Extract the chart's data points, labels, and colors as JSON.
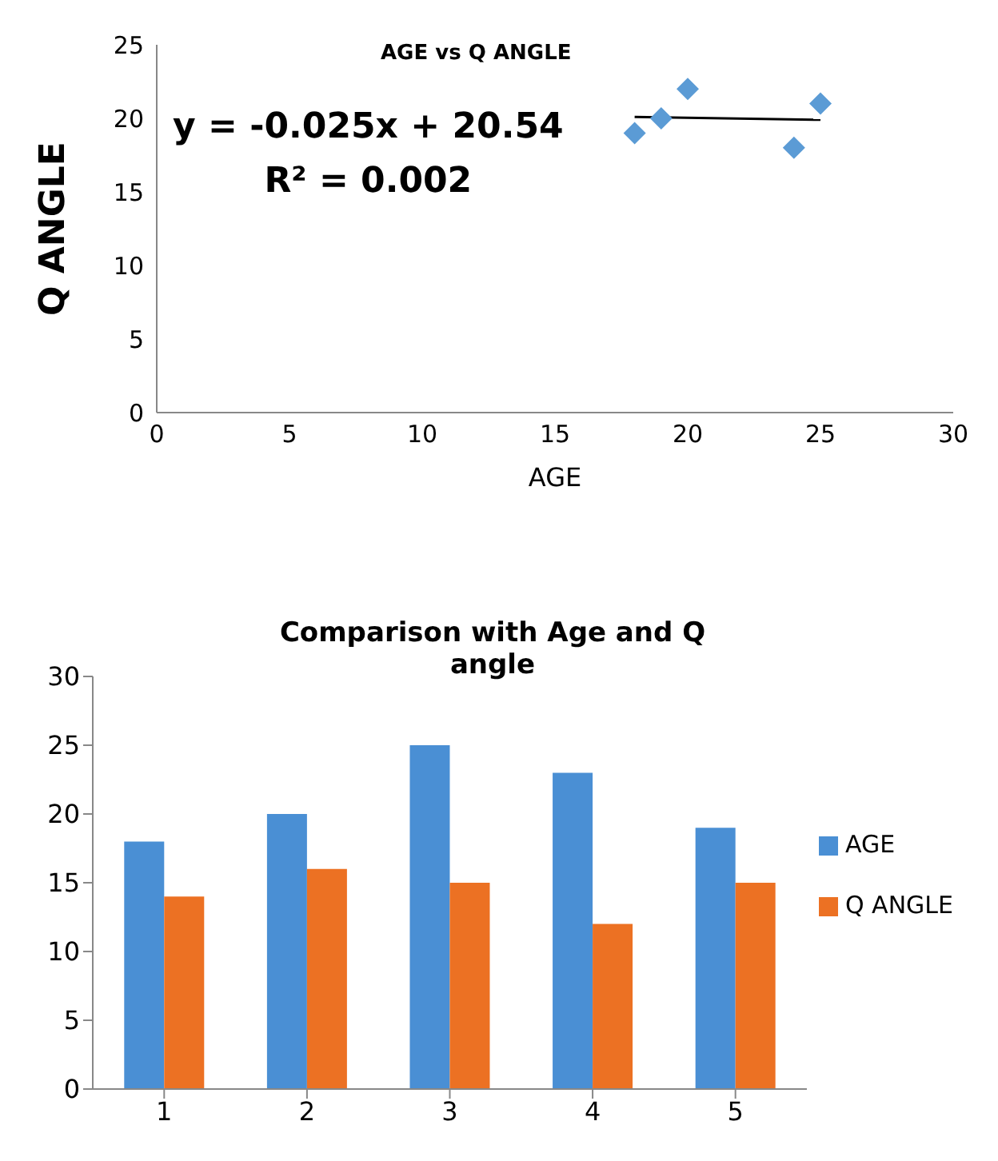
{
  "chart_data": [
    {
      "type": "scatter",
      "title": "AGE vs Q ANGLE",
      "xlabel": "AGE",
      "ylabel": "Q ANGLE",
      "xlim": [
        0,
        30
      ],
      "xticks": [
        0,
        5,
        10,
        15,
        20,
        25,
        30
      ],
      "ylim": [
        0,
        25
      ],
      "yticks": [
        0,
        5,
        10,
        15,
        20,
        25
      ],
      "marker": "diamond",
      "annotations": [
        "y = -0.025x + 20.54",
        "R² = 0.002"
      ],
      "series": [
        {
          "type": "scatter",
          "color": "#5b9bd5",
          "x": [
            18,
            19,
            20,
            24,
            25
          ],
          "values": [
            19,
            20,
            22,
            18,
            21
          ]
        },
        {
          "type": "line",
          "color": "#000000",
          "marker": "none",
          "x": [
            18,
            25
          ],
          "values": [
            20.1,
            19.9
          ]
        }
      ]
    },
    {
      "type": "bar",
      "title": "Comparison with Age and Q angle",
      "categories": [
        "1",
        "2",
        "3",
        "4",
        "5"
      ],
      "ylim": [
        0,
        30
      ],
      "yticks": [
        0,
        5,
        10,
        15,
        20,
        25,
        30
      ],
      "legend": "right",
      "series": [
        {
          "name": "AGE",
          "color": "#4a8fd4",
          "values": [
            18,
            20,
            25,
            23,
            19
          ]
        },
        {
          "name": "Q ANGLE",
          "color": "#ec7123",
          "values": [
            14,
            16,
            15,
            12,
            15
          ]
        }
      ]
    }
  ]
}
